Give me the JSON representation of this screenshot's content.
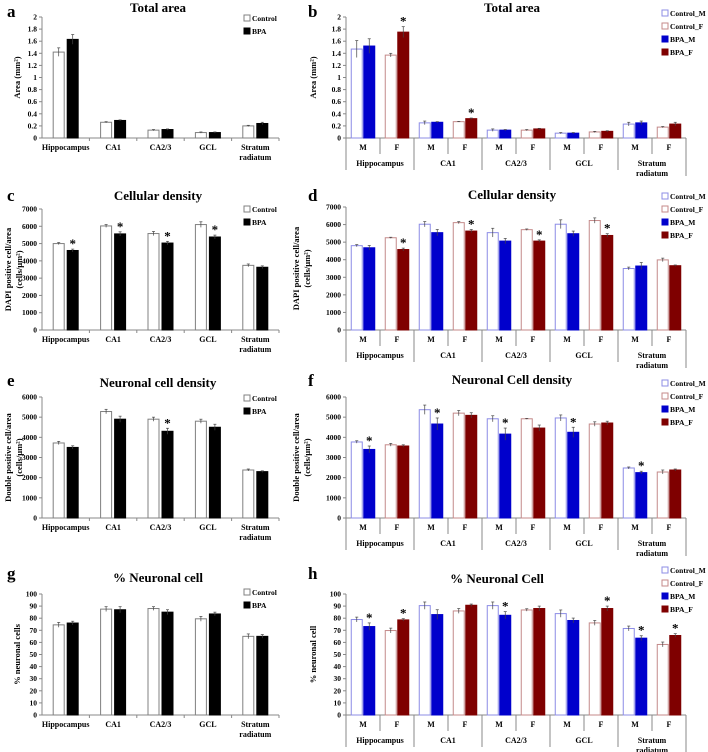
{
  "sig_marker": "*",
  "colors": {
    "Control": "#ffffff",
    "Control_stroke": "#808080",
    "BPA": "#000000",
    "Control_M": "#ffffff",
    "Control_M_stroke": "#8c8ce6",
    "Control_F": "#ffffff",
    "Control_F_stroke": "#c48a8a",
    "BPA_M": "#0000cc",
    "BPA_F": "#7f0000"
  },
  "chart_data": [
    {
      "panel": "a",
      "type": "bar",
      "title": "Total area",
      "ylabel": [
        "Area (mm²)"
      ],
      "ylim": [
        0,
        2
      ],
      "yticks": [
        "0",
        "0.2",
        "0.4",
        "0.6",
        "0.8",
        "1",
        "1.2",
        "1.4",
        "1.6",
        "1.8",
        "2"
      ],
      "categories": [
        "Hippocampus",
        "CA1",
        "CA2/3",
        "GCL",
        "Stratum|radiatum"
      ],
      "legend": [
        "Control",
        "BPA"
      ],
      "series": [
        {
          "name": "Control",
          "values": [
            1.42,
            0.26,
            0.13,
            0.09,
            0.2
          ],
          "errors": [
            0.07,
            0.01,
            0.01,
            0.01,
            0.01
          ],
          "significant": [
            false,
            false,
            false,
            false,
            false
          ]
        },
        {
          "name": "BPA",
          "values": [
            1.63,
            0.29,
            0.14,
            0.09,
            0.24
          ],
          "errors": [
            0.08,
            0.01,
            0.01,
            0.01,
            0.02
          ],
          "significant": [
            false,
            false,
            false,
            false,
            false
          ]
        }
      ]
    },
    {
      "panel": "b",
      "type": "bar",
      "title": "Total area",
      "ylabel": [
        "Area (mm²)"
      ],
      "ylim": [
        0,
        2
      ],
      "yticks": [
        "0",
        "0.2",
        "0.4",
        "0.6",
        "0.8",
        "1",
        "1.2",
        "1.4",
        "1.6",
        "1.8",
        "2"
      ],
      "categories": [
        "Hippocampus",
        "CA1",
        "CA2/3",
        "GCL",
        "Stratum|radiatum"
      ],
      "subcategories": [
        "M",
        "F"
      ],
      "legend": [
        "Control_M",
        "Control_F",
        "BPA_M",
        "BPA_F"
      ],
      "series": [
        {
          "name": "Control_M",
          "values": [
            1.47,
            0.25,
            0.13,
            0.08,
            0.23
          ],
          "errors": [
            0.14,
            0.03,
            0.02,
            0.01,
            0.03
          ],
          "significant": [
            false,
            false,
            false,
            false,
            false
          ]
        },
        {
          "name": "BPA_M",
          "values": [
            1.52,
            0.26,
            0.13,
            0.08,
            0.25
          ],
          "errors": [
            0.12,
            0.01,
            0.01,
            0.01,
            0.03
          ],
          "significant": [
            false,
            false,
            false,
            false,
            false
          ]
        },
        {
          "name": "Control_F",
          "values": [
            1.37,
            0.27,
            0.13,
            0.1,
            0.18
          ],
          "errors": [
            0.03,
            0.005,
            0.01,
            0.01,
            0.01
          ],
          "significant": [
            false,
            false,
            false,
            false,
            false
          ]
        },
        {
          "name": "BPA_F",
          "values": [
            1.75,
            0.32,
            0.15,
            0.11,
            0.23
          ],
          "errors": [
            0.09,
            0.01,
            0.01,
            0.01,
            0.03
          ],
          "significant": [
            true,
            true,
            false,
            false,
            false
          ]
        }
      ]
    },
    {
      "panel": "c",
      "type": "bar",
      "title": "Cellular density",
      "ylabel": [
        "DAPI positive cell/area",
        "(cells/µm²)"
      ],
      "ylim": [
        0,
        7000
      ],
      "yticks": [
        "0",
        "1000",
        "2000",
        "3000",
        "4000",
        "5000",
        "6000",
        "7000"
      ],
      "categories": [
        "Hippocampus",
        "CA1",
        "CA2/3",
        "GCL",
        "Stratum|radiatum"
      ],
      "legend": [
        "Control",
        "BPA"
      ],
      "series": [
        {
          "name": "Control",
          "values": [
            5000,
            6020,
            5580,
            6100,
            3740
          ],
          "errors": [
            60,
            80,
            120,
            160,
            80
          ],
          "significant": [
            false,
            false,
            false,
            false,
            false
          ]
        },
        {
          "name": "BPA",
          "values": [
            4600,
            5560,
            5030,
            5380,
            3630
          ],
          "errors": [
            80,
            120,
            100,
            110,
            80
          ],
          "significant": [
            true,
            true,
            true,
            true,
            false
          ]
        }
      ]
    },
    {
      "panel": "d",
      "type": "bar",
      "title": "Cellular density",
      "ylabel": [
        "DAPI positive cell/area",
        "(cells/µm²)"
      ],
      "ylim": [
        0,
        7000
      ],
      "yticks": [
        "0",
        "1000",
        "2000",
        "3000",
        "4000",
        "5000",
        "6000",
        "7000"
      ],
      "categories": [
        "Hippocampus",
        "CA1",
        "CA2/3",
        "GCL",
        "Stratum|radiatum"
      ],
      "subcategories": [
        "M",
        "F"
      ],
      "legend": [
        "Control_M",
        "Control_F",
        "BPA_M",
        "BPA_F"
      ],
      "series": [
        {
          "name": "Control_M",
          "values": [
            4800,
            6020,
            5540,
            6020,
            3500
          ],
          "errors": [
            60,
            150,
            250,
            250,
            80
          ],
          "significant": [
            false,
            false,
            false,
            false,
            false
          ]
        },
        {
          "name": "BPA_M",
          "values": [
            4680,
            5540,
            5060,
            5480,
            3640
          ],
          "errors": [
            130,
            180,
            150,
            150,
            200
          ],
          "significant": [
            false,
            false,
            false,
            false,
            false
          ]
        },
        {
          "name": "Control_F",
          "values": [
            5250,
            6110,
            5710,
            6230,
            3990
          ],
          "errors": [
            30,
            60,
            40,
            150,
            100
          ],
          "significant": [
            false,
            false,
            false,
            false,
            false
          ]
        },
        {
          "name": "BPA_F",
          "values": [
            4580,
            5630,
            5060,
            5380,
            3660
          ],
          "errors": [
            80,
            90,
            70,
            100,
            40
          ],
          "significant": [
            true,
            true,
            true,
            true,
            false
          ]
        }
      ]
    },
    {
      "panel": "e",
      "type": "bar",
      "title": "Neuronal cell density",
      "ylabel": [
        "Double positive cell/area",
        "(cells/µm²)"
      ],
      "ylim": [
        0,
        6000
      ],
      "yticks": [
        "0",
        "1000",
        "2000",
        "3000",
        "4000",
        "5000",
        "6000"
      ],
      "categories": [
        "Hippocampus",
        "CA1",
        "CA2/3",
        "GCL",
        "Stratum|radiatum"
      ],
      "legend": [
        "Control",
        "BPA"
      ],
      "series": [
        {
          "name": "Control",
          "values": [
            3720,
            5280,
            4900,
            4800,
            2380
          ],
          "errors": [
            80,
            110,
            100,
            100,
            50
          ],
          "significant": [
            false,
            false,
            false,
            false,
            false
          ]
        },
        {
          "name": "BPA",
          "values": [
            3500,
            4900,
            4300,
            4500,
            2300
          ],
          "errors": [
            80,
            150,
            150,
            150,
            40
          ],
          "significant": [
            false,
            false,
            true,
            false,
            false
          ]
        }
      ]
    },
    {
      "panel": "f",
      "type": "bar",
      "title": "Neuronal Cell density",
      "ylabel": [
        "Double positive cell/area",
        "(cells/µm²)"
      ],
      "ylim": [
        0,
        6000
      ],
      "yticks": [
        "0",
        "1000",
        "2000",
        "3000",
        "4000",
        "5000",
        "6000"
      ],
      "categories": [
        "Hippocampus",
        "CA1",
        "CA2/3",
        "GCL",
        "Stratum|radiatum"
      ],
      "subcategories": [
        "M",
        "F"
      ],
      "legend": [
        "Control_M",
        "Control_F",
        "BPA_M",
        "BPA_F"
      ],
      "series": [
        {
          "name": "Control_M",
          "values": [
            3770,
            5370,
            4920,
            4960,
            2480
          ],
          "errors": [
            60,
            230,
            150,
            150,
            50
          ],
          "significant": [
            false,
            false,
            false,
            false,
            false
          ]
        },
        {
          "name": "BPA_M",
          "values": [
            3400,
            4660,
            4160,
            4250,
            2250
          ],
          "errors": [
            170,
            300,
            300,
            250,
            70
          ],
          "significant": [
            true,
            true,
            true,
            true,
            true
          ]
        },
        {
          "name": "Control_F",
          "values": [
            3630,
            5200,
            4920,
            4660,
            2280
          ],
          "errors": [
            70,
            130,
            20,
            110,
            100
          ],
          "significant": [
            false,
            false,
            false,
            false,
            false
          ]
        },
        {
          "name": "BPA_F",
          "values": [
            3570,
            5090,
            4460,
            4710,
            2380
          ],
          "errors": [
            60,
            130,
            150,
            90,
            50
          ],
          "significant": [
            false,
            false,
            false,
            false,
            false
          ]
        }
      ]
    },
    {
      "panel": "g",
      "type": "bar",
      "title": "% Neuronal cell",
      "ylabel": [
        "% neuronal cells"
      ],
      "ylim": [
        0,
        100
      ],
      "yticks": [
        "0",
        "10",
        "20",
        "30",
        "40",
        "50",
        "60",
        "70",
        "80",
        "90",
        "100"
      ],
      "categories": [
        "Hippocampus",
        "CA1",
        "CA2/3",
        "GCL",
        "Stratum|radiatum"
      ],
      "legend": [
        "Control",
        "BPA"
      ],
      "series": [
        {
          "name": "Control",
          "values": [
            74.5,
            87.5,
            88,
            79.5,
            65
          ],
          "errors": [
            2,
            2,
            1.5,
            2,
            2
          ],
          "significant": [
            false,
            false,
            false,
            false,
            false
          ]
        },
        {
          "name": "BPA",
          "values": [
            76,
            87,
            85,
            83.5,
            65
          ],
          "errors": [
            1.5,
            2.5,
            2,
            1.5,
            1.5
          ],
          "significant": [
            false,
            false,
            false,
            false,
            false
          ]
        }
      ]
    },
    {
      "panel": "h",
      "type": "bar",
      "title": "% Neuronal Cell",
      "ylabel": [
        "% neuronal cell"
      ],
      "ylim": [
        0,
        100
      ],
      "yticks": [
        "0",
        "10",
        "20",
        "30",
        "40",
        "50",
        "60",
        "70",
        "80",
        "90",
        "100"
      ],
      "categories": [
        "Hippocampus",
        "CA1",
        "CA2/3",
        "GCL",
        "Stratum|radiatum"
      ],
      "subcategories": [
        "M",
        "F"
      ],
      "legend": [
        "Control_M",
        "Control_F",
        "BPA_M",
        "BPA_F"
      ],
      "series": [
        {
          "name": "Control_M",
          "values": [
            78.9,
            90.4,
            90.4,
            83.8,
            71.5
          ],
          "errors": [
            2,
            3,
            3,
            3,
            2
          ],
          "significant": [
            false,
            false,
            false,
            false,
            false
          ]
        },
        {
          "name": "BPA_M",
          "values": [
            73.1,
            83,
            82.4,
            78.1,
            63.5
          ],
          "errors": [
            3,
            4,
            3,
            2,
            2
          ],
          "significant": [
            true,
            false,
            true,
            false,
            true
          ]
        },
        {
          "name": "Control_F",
          "values": [
            69.8,
            86,
            86.8,
            76.1,
            58.3
          ],
          "errors": [
            2,
            2,
            1,
            2,
            2
          ],
          "significant": [
            false,
            false,
            false,
            false,
            false
          ]
        },
        {
          "name": "BPA_F",
          "values": [
            78.6,
            90.7,
            88,
            88,
            65.7
          ],
          "errors": [
            1,
            1,
            2,
            2,
            1.5
          ],
          "significant": [
            true,
            false,
            false,
            true,
            true
          ]
        }
      ]
    }
  ]
}
